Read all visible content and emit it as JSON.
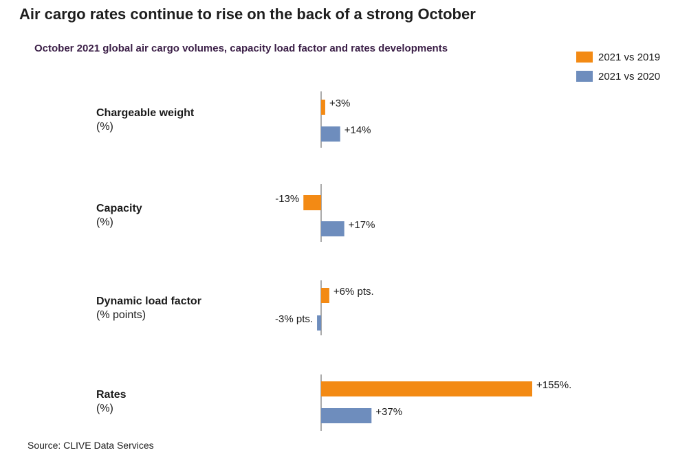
{
  "title": "Air cargo rates continue to rise on the back of a strong October",
  "subtitle": "October 2021 global air cargo volumes, capacity load factor and rates developments",
  "source": "Source: CLIVE Data Services",
  "colors": {
    "series_2019": "#f38a14",
    "series_2020": "#6e8dbd"
  },
  "chart_data": {
    "type": "bar",
    "orientation": "horizontal",
    "categories": [
      {
        "name": "Chargeable weight",
        "unit": "(%)"
      },
      {
        "name": "Capacity",
        "unit": "(%)"
      },
      {
        "name": "Dynamic load factor",
        "unit": "(% points)"
      },
      {
        "name": "Rates",
        "unit": "(%)"
      }
    ],
    "series": [
      {
        "name": "2021 vs 2019",
        "values": [
          3,
          -13,
          6,
          155
        ],
        "labels": [
          "+3%",
          "-13%",
          "+6% pts.",
          "+155%."
        ]
      },
      {
        "name": "2021 vs 2020",
        "values": [
          14,
          17,
          -3,
          37
        ],
        "labels": [
          "+14%",
          "+17%",
          "-3% pts.",
          "+37%"
        ]
      }
    ],
    "legend_position": "top-right",
    "grid": false
  }
}
